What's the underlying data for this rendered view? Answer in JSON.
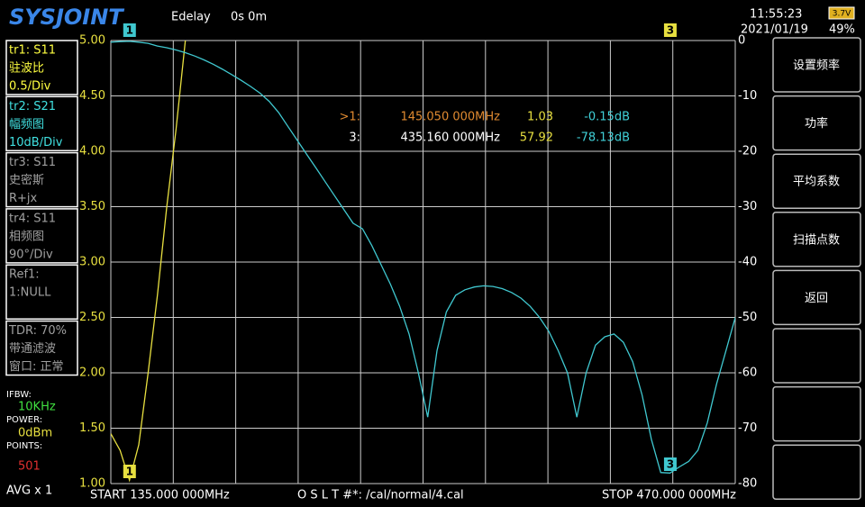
{
  "header": {
    "logo": "SYSJOINT",
    "edelay_label": "Edelay",
    "edelay_value": "0s 0m",
    "time": "11:55:23",
    "date": "2021/01/19",
    "battery_voltage": "3.7V",
    "battery_percent": "49%"
  },
  "trace_panels": [
    {
      "lines": [
        "tr1:  S11",
        "驻波比",
        "0.5/Div"
      ],
      "color": "#ffff40"
    },
    {
      "lines": [
        "tr2:  S21",
        "幅频图",
        "10dB/Div"
      ],
      "color": "#40e0e0"
    },
    {
      "lines": [
        "tr3:  S11",
        "史密斯",
        "R+jx"
      ],
      "color": "#a0a0a0"
    },
    {
      "lines": [
        "tr4:  S11",
        "相频图",
        "90°/Div"
      ],
      "color": "#a0a0a0"
    },
    {
      "lines": [
        "Ref1:",
        "1:NULL"
      ],
      "color": "#a0a0a0"
    },
    {
      "lines": [
        "TDR: 70%",
        "带通滤波",
        "窗口: 正常"
      ],
      "color": "#a0a0a0"
    }
  ],
  "status": {
    "ifbw_label": "IFBW:",
    "ifbw": "10KHz",
    "power_label": "POWER:",
    "power": "0dBm",
    "points_label": "POINTS:",
    "points": "501",
    "avg": "AVG x 1"
  },
  "menu": [
    "设置频率",
    "功率",
    "平均系数",
    "扫描点数",
    "返回"
  ],
  "footer": {
    "start": "START  135.000 000MHz",
    "cal": "O S L T #*: /cal/normal/4.cal",
    "stop": "STOP  470.000 000MHz"
  },
  "chart_data": {
    "type": "line",
    "x": [
      135,
      140,
      145,
      150,
      155,
      160,
      165,
      170,
      175,
      180,
      185,
      190,
      195,
      200,
      205,
      210,
      215,
      220,
      225,
      230,
      235,
      240,
      245,
      250,
      255,
      260,
      265,
      270,
      275,
      280,
      285,
      290,
      295,
      300,
      305,
      310,
      315,
      320,
      325,
      330,
      335,
      340,
      345,
      350,
      355,
      360,
      365,
      370,
      375,
      380,
      385,
      390,
      395,
      400,
      405,
      410,
      415,
      420,
      425,
      430,
      435,
      440,
      445,
      450,
      455,
      460,
      465,
      470
    ],
    "xlim": [
      135,
      470
    ],
    "xticks": [
      135,
      168.5,
      202,
      235.5,
      269,
      302.5,
      336,
      369.5,
      403,
      436.5,
      470
    ],
    "ylim": [
      1,
      5
    ],
    "yticks": [
      {
        "value": 1,
        "label": "1.00"
      },
      {
        "value": 1.5,
        "label": "1.50"
      },
      {
        "value": 2,
        "label": "2.00"
      },
      {
        "value": 2.5,
        "label": "2.50"
      },
      {
        "value": 3,
        "label": "3.00"
      },
      {
        "value": 3.5,
        "label": "3.50"
      },
      {
        "value": 4,
        "label": "4.00"
      },
      {
        "value": 4.5,
        "label": "4.50"
      },
      {
        "value": 5,
        "label": "5.00"
      }
    ],
    "y2lim": [
      -80,
      0
    ],
    "y2ticks": [
      0,
      -10,
      -20,
      -30,
      -40,
      -50,
      -60,
      -70,
      -80
    ],
    "grid": true,
    "series": [
      {
        "color": "#e8e040",
        "values": [
          1.45,
          1.3,
          1.03,
          1.35,
          2.0,
          2.7,
          3.5,
          4.2,
          5.0,
          null,
          null,
          null,
          null,
          null,
          null,
          null,
          null,
          null,
          null,
          null,
          null,
          null,
          null,
          null,
          null,
          null,
          null,
          null,
          null,
          null,
          null,
          null,
          null,
          null,
          null,
          null,
          null,
          null,
          null,
          null,
          null,
          null,
          null,
          null,
          null,
          null,
          null,
          null,
          null,
          null,
          null,
          null,
          null,
          null,
          null,
          null,
          null,
          null,
          null,
          null,
          null,
          null,
          null,
          null,
          null,
          null,
          null,
          null
        ]
      },
      {
        "color": "#40c8d0",
        "axis": "y2",
        "values": [
          -0.3,
          -0.2,
          -0.15,
          -0.3,
          -0.5,
          -1,
          -1.3,
          -1.7,
          -2.2,
          -2.8,
          -3.5,
          -4.3,
          -5.2,
          -6.2,
          -7.2,
          -8.3,
          -9.5,
          -11,
          -13,
          -15.5,
          -18,
          -20.5,
          -23,
          -25.5,
          -28,
          -30.5,
          -33,
          -34,
          -37,
          -40.5,
          -44,
          -48,
          -53,
          -60,
          -68,
          -56,
          -49,
          -46,
          -45,
          -44.5,
          -44.3,
          -44.4,
          -44.8,
          -45.5,
          -46.5,
          -48,
          -50,
          -52.5,
          -56,
          -60,
          -68,
          -60,
          -55,
          -53.5,
          -53,
          -54.5,
          -58,
          -64,
          -72,
          -78,
          -78.1,
          -77,
          -76,
          -74,
          -69,
          -62,
          -56,
          -50
        ]
      }
    ],
    "markers": [
      {
        "flag": "1",
        "x": 145.05,
        "label": ">1:",
        "freq": "145.050 000MHz",
        "swr": "1.03",
        "db": "-0.15dB"
      },
      {
        "flag": "3",
        "x": 435.16,
        "label": "3:",
        "freq": "435.160 000MHz",
        "swr": "57.92",
        "db": "-78.13dB"
      }
    ]
  }
}
